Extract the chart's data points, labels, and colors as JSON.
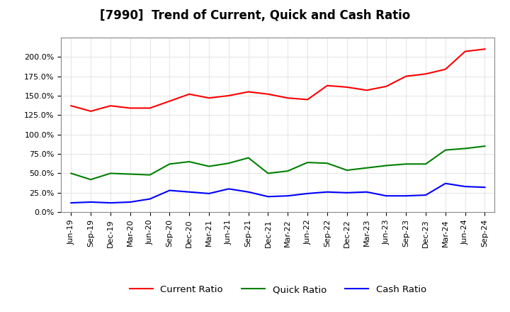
{
  "title": "[7990]  Trend of Current, Quick and Cash Ratio",
  "x_labels": [
    "Jun-19",
    "Sep-19",
    "Dec-19",
    "Mar-20",
    "Jun-20",
    "Sep-20",
    "Dec-20",
    "Mar-21",
    "Jun-21",
    "Sep-21",
    "Dec-21",
    "Mar-22",
    "Jun-22",
    "Sep-22",
    "Dec-22",
    "Mar-23",
    "Jun-23",
    "Sep-23",
    "Dec-23",
    "Mar-24",
    "Jun-24",
    "Sep-24"
  ],
  "current_ratio": [
    1.37,
    1.3,
    1.37,
    1.34,
    1.34,
    1.43,
    1.52,
    1.47,
    1.5,
    1.55,
    1.52,
    1.47,
    1.45,
    1.63,
    1.61,
    1.57,
    1.62,
    1.75,
    1.78,
    1.84,
    2.07,
    2.1
  ],
  "quick_ratio": [
    0.5,
    0.42,
    0.5,
    0.49,
    0.48,
    0.62,
    0.65,
    0.59,
    0.63,
    0.7,
    0.5,
    0.53,
    0.64,
    0.63,
    0.54,
    0.57,
    0.6,
    0.62,
    0.62,
    0.8,
    0.82,
    0.85
  ],
  "cash_ratio": [
    0.12,
    0.13,
    0.12,
    0.13,
    0.17,
    0.28,
    0.26,
    0.24,
    0.3,
    0.26,
    0.2,
    0.21,
    0.24,
    0.26,
    0.25,
    0.26,
    0.21,
    0.21,
    0.22,
    0.37,
    0.33,
    0.32
  ],
  "current_color": "#FF0000",
  "quick_color": "#008000",
  "cash_color": "#0000FF",
  "line_width": 1.5,
  "yticks": [
    0.0,
    0.25,
    0.5,
    0.75,
    1.0,
    1.25,
    1.5,
    1.75,
    2.0
  ],
  "background_color": "#FFFFFF",
  "plot_bg_color": "#FFFFFF",
  "grid_color": "#999999",
  "title_fontsize": 12,
  "tick_fontsize": 8,
  "legend_fontsize": 9.5
}
